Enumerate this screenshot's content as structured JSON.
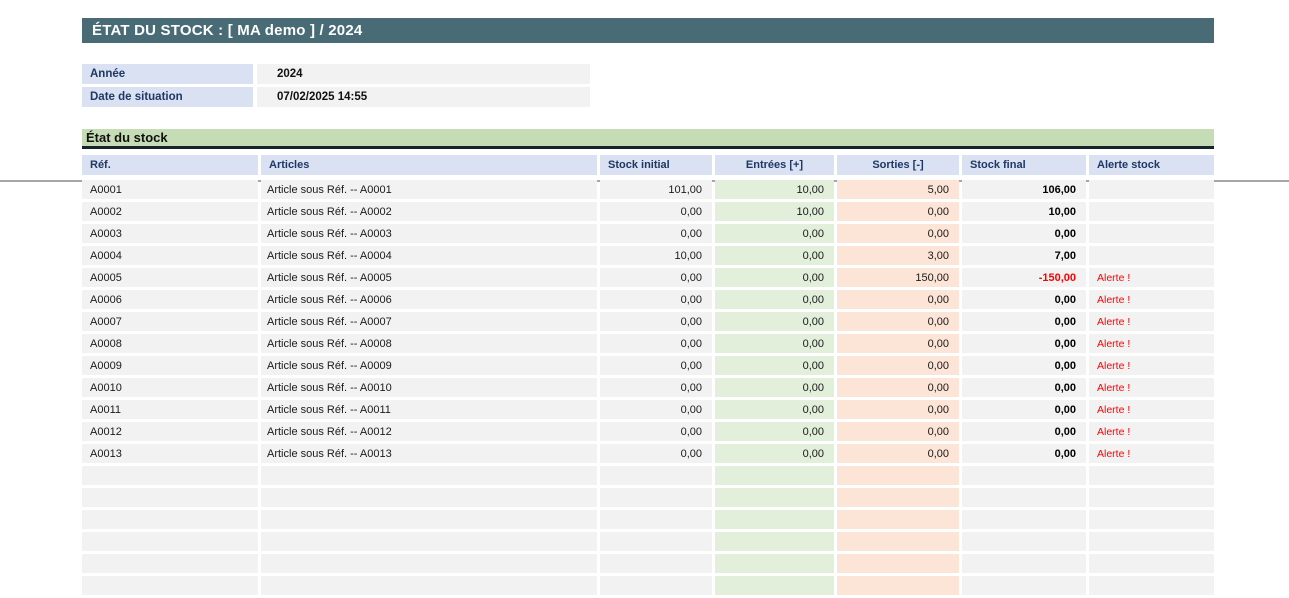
{
  "title_bar": {
    "text": "ÉTAT DU STOCK : [ MA demo ]  / 2024"
  },
  "info": {
    "rows": [
      {
        "label": "Année",
        "value": "2024"
      },
      {
        "label": "Date de situation",
        "value": "07/02/2025 14:55"
      }
    ]
  },
  "section": {
    "title": "État du stock"
  },
  "table": {
    "headers": [
      "Réf.",
      "Articles",
      "Stock initial",
      "Entrées [+]",
      "Sorties [-]",
      "Stock final",
      "Alerte stock"
    ],
    "rows": [
      {
        "ref": "A0001",
        "article": "Article sous Réf. -- A0001",
        "stock_initial": "101,00",
        "entrees": "10,00",
        "sorties": "5,00",
        "stock_final": "106,00",
        "alerte": "",
        "negative": false
      },
      {
        "ref": "A0002",
        "article": "Article sous Réf. -- A0002",
        "stock_initial": "0,00",
        "entrees": "10,00",
        "sorties": "0,00",
        "stock_final": "10,00",
        "alerte": "",
        "negative": false
      },
      {
        "ref": "A0003",
        "article": "Article sous Réf. -- A0003",
        "stock_initial": "0,00",
        "entrees": "0,00",
        "sorties": "0,00",
        "stock_final": "0,00",
        "alerte": "",
        "negative": false
      },
      {
        "ref": "A0004",
        "article": "Article sous Réf. -- A0004",
        "stock_initial": "10,00",
        "entrees": "0,00",
        "sorties": "3,00",
        "stock_final": "7,00",
        "alerte": "",
        "negative": false
      },
      {
        "ref": "A0005",
        "article": "Article sous Réf. -- A0005",
        "stock_initial": "0,00",
        "entrees": "0,00",
        "sorties": "150,00",
        "stock_final": "-150,00",
        "alerte": "Alerte !",
        "negative": true
      },
      {
        "ref": "A0006",
        "article": "Article sous Réf. -- A0006",
        "stock_initial": "0,00",
        "entrees": "0,00",
        "sorties": "0,00",
        "stock_final": "0,00",
        "alerte": "Alerte !",
        "negative": false
      },
      {
        "ref": "A0007",
        "article": "Article sous Réf. -- A0007",
        "stock_initial": "0,00",
        "entrees": "0,00",
        "sorties": "0,00",
        "stock_final": "0,00",
        "alerte": "Alerte !",
        "negative": false
      },
      {
        "ref": "A0008",
        "article": "Article sous Réf. -- A0008",
        "stock_initial": "0,00",
        "entrees": "0,00",
        "sorties": "0,00",
        "stock_final": "0,00",
        "alerte": "Alerte !",
        "negative": false
      },
      {
        "ref": "A0009",
        "article": "Article sous Réf. -- A0009",
        "stock_initial": "0,00",
        "entrees": "0,00",
        "sorties": "0,00",
        "stock_final": "0,00",
        "alerte": "Alerte !",
        "negative": false
      },
      {
        "ref": "A0010",
        "article": "Article sous Réf. -- A0010",
        "stock_initial": "0,00",
        "entrees": "0,00",
        "sorties": "0,00",
        "stock_final": "0,00",
        "alerte": "Alerte !",
        "negative": false
      },
      {
        "ref": "A0011",
        "article": "Article sous Réf. -- A0011",
        "stock_initial": "0,00",
        "entrees": "0,00",
        "sorties": "0,00",
        "stock_final": "0,00",
        "alerte": "Alerte !",
        "negative": false
      },
      {
        "ref": "A0012",
        "article": "Article sous Réf. -- A0012",
        "stock_initial": "0,00",
        "entrees": "0,00",
        "sorties": "0,00",
        "stock_final": "0,00",
        "alerte": "Alerte !",
        "negative": false
      },
      {
        "ref": "A0013",
        "article": "Article sous Réf. -- A0013",
        "stock_initial": "0,00",
        "entrees": "0,00",
        "sorties": "0,00",
        "stock_final": "0,00",
        "alerte": "Alerte !",
        "negative": false
      }
    ],
    "empty_row_count": 6
  },
  "colors": {
    "title_bar_bg": "#486B76",
    "header_bg": "#D9E1F2",
    "header_text": "#1F3864",
    "section_bg": "#C6DCB4",
    "section_border": "#17242C",
    "cell_bg": "#F2F2F2",
    "entrees_bg": "#E2EFDA",
    "sorties_bg": "#FCE4D6",
    "alert_red": "#FF0000"
  }
}
